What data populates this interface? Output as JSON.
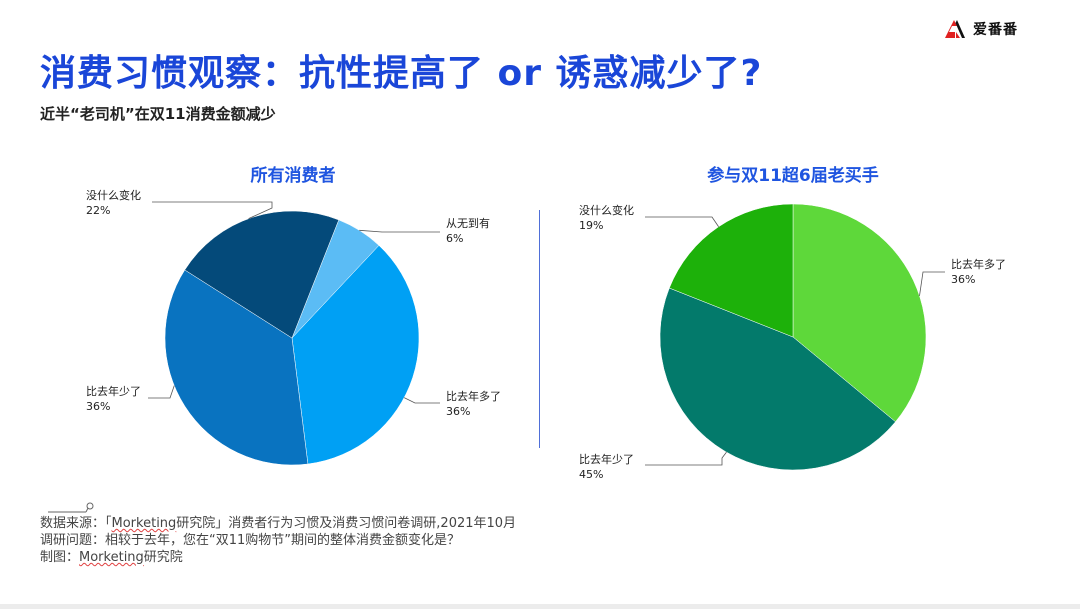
{
  "brand": {
    "name": "爱番番",
    "accent": "#e02020"
  },
  "title": "消费习惯观察：抗性提高了 or 诱惑减少了?",
  "subtitle": "近半“老司机”在双11消费金额减少",
  "chart_data": [
    {
      "type": "pie",
      "title": "所有消费者",
      "slices": [
        {
          "label": "从无到有",
          "value": 6,
          "value_label": "6%",
          "color": "#5bbcf5"
        },
        {
          "label": "比去年多了",
          "value": 36,
          "value_label": "36%",
          "color": "#00a0f4"
        },
        {
          "label": "比去年少了",
          "value": 36,
          "value_label": "36%",
          "color": "#0973c0"
        },
        {
          "label": "没什么变化",
          "value": 22,
          "value_label": "22%",
          "color": "#044a7a"
        }
      ]
    },
    {
      "type": "pie",
      "title": "参与双11超6届老买手",
      "slices": [
        {
          "label": "比去年多了",
          "value": 36,
          "value_label": "36%",
          "color": "#5ed83a"
        },
        {
          "label": "比去年少了",
          "value": 45,
          "value_label": "45%",
          "color": "#037a6b"
        },
        {
          "label": "没什么变化",
          "value": 19,
          "value_label": "19%",
          "color": "#1db10a"
        }
      ]
    }
  ],
  "source": {
    "line1_prefix": "数据来源：「",
    "line1_brand": "Morketing",
    "line1_suffix": "研究院」消费者行为习惯及消费习惯问卷调研,2021年10月",
    "line2": "调研问题：相较于去年，您在“双11购物节”期间的整体消费金额变化是？",
    "line3_prefix": "制图：",
    "line3_brand": "Morketing",
    "line3_suffix": "研究院"
  }
}
